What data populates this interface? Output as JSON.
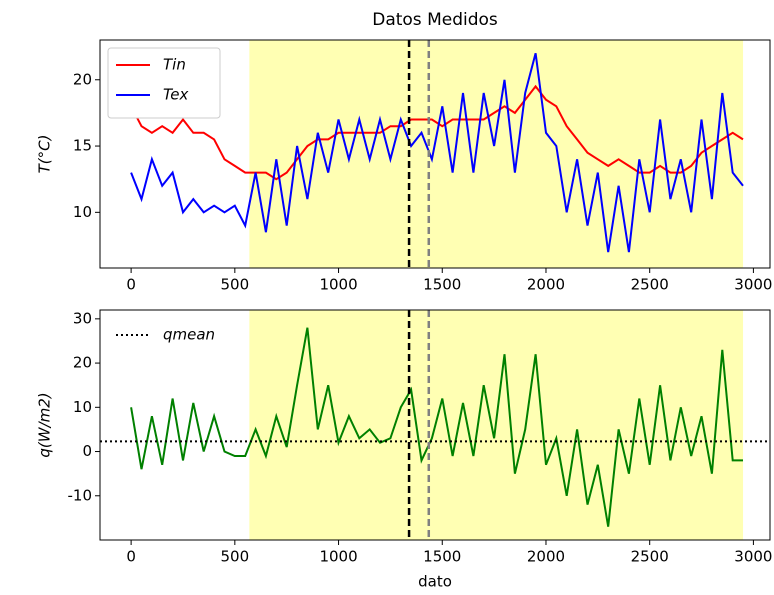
{
  "chart_data": [
    {
      "type": "line",
      "title": "Datos Medidos",
      "ylabel": "T(°C)",
      "x": [
        0,
        50,
        100,
        150,
        200,
        250,
        300,
        350,
        400,
        450,
        500,
        550,
        600,
        650,
        700,
        750,
        800,
        850,
        900,
        950,
        1000,
        1050,
        1100,
        1150,
        1200,
        1250,
        1300,
        1350,
        1400,
        1450,
        1500,
        1550,
        1600,
        1650,
        1700,
        1750,
        1800,
        1850,
        1900,
        1950,
        2000,
        2050,
        2100,
        2150,
        2200,
        2250,
        2300,
        2350,
        2400,
        2450,
        2500,
        2550,
        2600,
        2650,
        2700,
        2750,
        2800,
        2850,
        2900,
        2950
      ],
      "series": [
        {
          "name": "Tin",
          "color": "#ff0000",
          "values": [
            18,
            16.5,
            16,
            16.5,
            16,
            17,
            16,
            16,
            15.5,
            14,
            13.5,
            13,
            13,
            13,
            12.5,
            13,
            14,
            15,
            15.5,
            15.5,
            16,
            16,
            16,
            16,
            16,
            16.5,
            16.5,
            17,
            17,
            17,
            16.5,
            17,
            17,
            17,
            17,
            17.5,
            18,
            17.5,
            18.5,
            19.5,
            18.5,
            18,
            16.5,
            15.5,
            14.5,
            14,
            13.5,
            14,
            13.5,
            13,
            13,
            13.5,
            13,
            13,
            13.5,
            14.5,
            15,
            15.5,
            16,
            15.5
          ]
        },
        {
          "name": "Tex",
          "color": "#0000ff",
          "values": [
            13,
            11,
            14,
            12,
            13,
            10,
            11,
            10,
            10.5,
            10,
            10.5,
            9,
            13,
            8.5,
            14,
            9,
            15,
            11,
            16,
            13,
            17,
            14,
            17,
            14,
            17,
            14,
            17,
            15,
            16,
            14,
            18,
            13,
            19,
            13,
            19,
            15,
            20,
            13,
            19,
            22,
            16,
            15,
            10,
            14,
            9,
            13,
            7,
            12,
            7,
            14,
            10,
            17,
            11,
            14,
            10,
            17,
            11,
            19,
            13,
            12
          ]
        }
      ],
      "xlim": [
        -150,
        3080
      ],
      "ylim": [
        5.8,
        23
      ],
      "xticks": [
        0,
        500,
        1000,
        1500,
        2000,
        2500,
        3000
      ],
      "yticks": [
        10,
        15,
        20
      ],
      "highlight": [
        570,
        2950
      ],
      "highlight_color": "#ffffb3",
      "vlines": [
        {
          "x": 1340,
          "color": "#000000"
        },
        {
          "x": 1435,
          "color": "#808080"
        }
      ],
      "legend": "upper left"
    },
    {
      "type": "line",
      "ylabel": "q(W/m2)",
      "xlabel": "dato",
      "x": [
        0,
        50,
        100,
        150,
        200,
        250,
        300,
        350,
        400,
        450,
        500,
        550,
        600,
        650,
        700,
        750,
        800,
        850,
        900,
        950,
        1000,
        1050,
        1100,
        1150,
        1200,
        1250,
        1300,
        1350,
        1400,
        1450,
        1500,
        1550,
        1600,
        1650,
        1700,
        1750,
        1800,
        1850,
        1900,
        1950,
        2000,
        2050,
        2100,
        2150,
        2200,
        2250,
        2300,
        2350,
        2400,
        2450,
        2500,
        2550,
        2600,
        2650,
        2700,
        2750,
        2800,
        2850,
        2900,
        2950
      ],
      "series": [
        {
          "color": "#008000",
          "values": [
            10,
            -4,
            8,
            -3,
            12,
            -2,
            11,
            0,
            8,
            0,
            -1,
            -1,
            5,
            -1,
            8,
            1,
            15,
            28,
            5,
            15,
            2,
            8,
            3,
            5,
            2,
            3,
            10,
            14,
            -2,
            3,
            12,
            -1,
            11,
            -1,
            15,
            3,
            22,
            -5,
            5,
            22,
            -3,
            3,
            -10,
            5,
            -12,
            -3,
            -17,
            5,
            -5,
            12,
            -3,
            15,
            -2,
            10,
            -1,
            8,
            -5,
            23,
            -2,
            -2
          ]
        }
      ],
      "hline": {
        "name": "qmean",
        "value": 2.3,
        "color": "#000000"
      },
      "xlim": [
        -150,
        3080
      ],
      "ylim": [
        -20,
        32
      ],
      "xticks": [
        0,
        500,
        1000,
        1500,
        2000,
        2500,
        3000
      ],
      "yticks": [
        -10,
        0,
        10,
        20,
        30
      ],
      "highlight": [
        570,
        2950
      ],
      "highlight_color": "#ffffb3",
      "vlines": [
        {
          "x": 1340,
          "color": "#000000"
        },
        {
          "x": 1435,
          "color": "#808080"
        }
      ],
      "legend": "upper left"
    }
  ]
}
